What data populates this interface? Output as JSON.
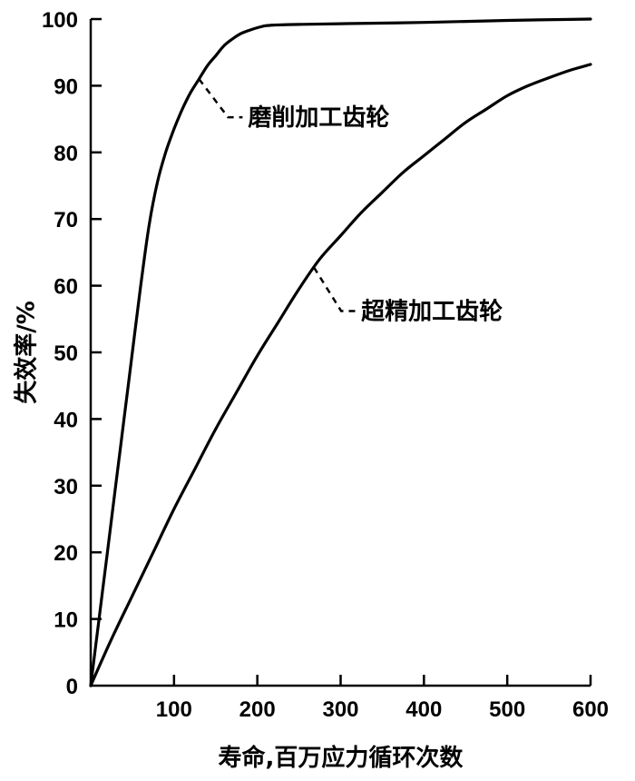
{
  "chart_data": {
    "type": "line",
    "title": "",
    "xlabel": "寿命,百万应力循环次数",
    "ylabel": "失效率/%",
    "xlim": [
      0,
      600
    ],
    "ylim": [
      0,
      100
    ],
    "x_ticks": [
      100,
      200,
      300,
      400,
      500,
      600
    ],
    "y_ticks": [
      0,
      10,
      20,
      30,
      40,
      50,
      60,
      70,
      80,
      90,
      100
    ],
    "grid": false,
    "series": [
      {
        "name": "磨削加工齿轮",
        "x": [
          0,
          10,
          20,
          30,
          40,
          50,
          60,
          70,
          80,
          90,
          100,
          110,
          120,
          130,
          140,
          150,
          160,
          170,
          180,
          190,
          200,
          210,
          220,
          250,
          300,
          400,
          500,
          600
        ],
        "y": [
          0,
          10,
          20,
          30,
          40,
          50,
          60,
          69,
          75.5,
          80,
          83.5,
          86.5,
          89,
          91,
          93,
          94.5,
          96,
          97,
          97.8,
          98.3,
          98.7,
          99,
          99.1,
          99.2,
          99.3,
          99.5,
          99.8,
          100
        ]
      },
      {
        "name": "超精加工齿轮",
        "x": [
          0,
          25,
          50,
          75,
          100,
          125,
          150,
          175,
          200,
          225,
          250,
          275,
          300,
          325,
          350,
          375,
          400,
          425,
          450,
          475,
          500,
          525,
          550,
          575,
          600
        ],
        "y": [
          0,
          7,
          13.5,
          20,
          26.5,
          32.5,
          38.5,
          44,
          49.5,
          54.5,
          59.5,
          64,
          67.5,
          71,
          74,
          77,
          79.5,
          82,
          84.5,
          86.5,
          88.5,
          90,
          91.2,
          92.3,
          93.2
        ]
      }
    ]
  }
}
